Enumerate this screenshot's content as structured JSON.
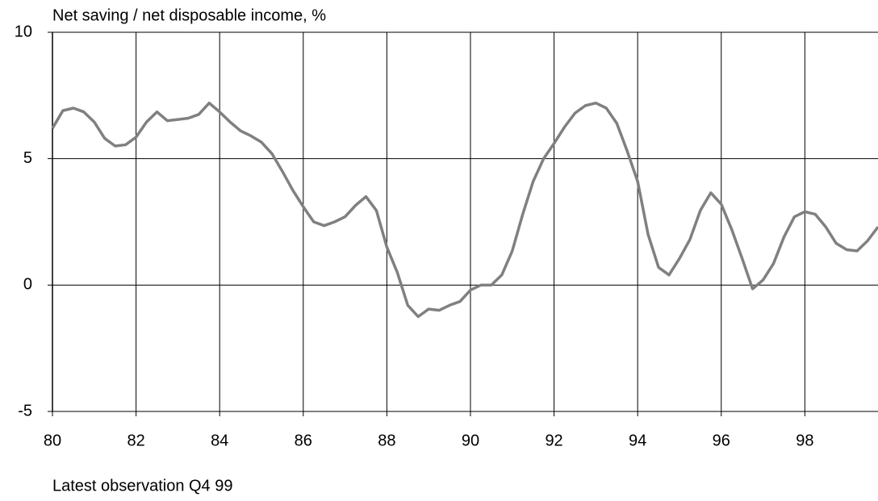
{
  "chart_data": {
    "type": "line",
    "title": "Net saving / net disposable income, %",
    "note": "Latest observation Q4 99",
    "x": [
      80,
      80.25,
      80.5,
      80.75,
      81,
      81.25,
      81.5,
      81.75,
      82,
      82.25,
      82.5,
      82.75,
      83,
      83.25,
      83.5,
      83.75,
      84,
      84.25,
      84.5,
      84.75,
      85,
      85.25,
      85.5,
      85.75,
      86,
      86.25,
      86.5,
      86.75,
      87,
      87.25,
      87.5,
      87.75,
      88,
      88.25,
      88.5,
      88.75,
      89,
      89.25,
      89.5,
      89.75,
      90,
      90.25,
      90.5,
      90.75,
      91,
      91.25,
      91.5,
      91.75,
      92,
      92.25,
      92.5,
      92.75,
      93,
      93.25,
      93.5,
      93.75,
      94,
      94.25,
      94.5,
      94.75,
      95,
      95.25,
      95.5,
      95.75,
      96,
      96.25,
      96.5,
      96.75,
      97,
      97.25,
      97.5,
      97.75,
      98,
      98.25,
      98.5,
      98.75,
      99,
      99.25,
      99.5,
      99.75
    ],
    "series": [
      {
        "color": "#808080",
        "values": [
          6.2,
          6.9,
          7.0,
          6.85,
          6.45,
          5.8,
          5.5,
          5.55,
          5.85,
          6.45,
          6.85,
          6.5,
          6.55,
          6.6,
          6.75,
          7.2,
          6.85,
          6.45,
          6.1,
          5.9,
          5.65,
          5.2,
          4.5,
          3.75,
          3.1,
          2.5,
          2.35,
          2.5,
          2.7,
          3.15,
          3.5,
          2.95,
          1.5,
          0.5,
          -0.8,
          -1.25,
          -0.95,
          -1.0,
          -0.8,
          -0.65,
          -0.2,
          0,
          0,
          0.4,
          1.35,
          2.8,
          4.1,
          5.0,
          5.6,
          6.25,
          6.8,
          7.1,
          7.2,
          7.0,
          6.4,
          5.3,
          4.1,
          2.0,
          0.7,
          0.4,
          1.05,
          1.8,
          2.95,
          3.65,
          3.2,
          2.2,
          1.05,
          -0.15,
          0.2,
          0.85,
          1.9,
          2.7,
          2.9,
          2.8,
          2.3,
          1.65,
          1.4,
          1.35,
          1.75,
          2.3
        ]
      }
    ],
    "xlim": [
      80,
      99.75
    ],
    "xticks": [
      80,
      82,
      84,
      86,
      88,
      90,
      92,
      94,
      96,
      98
    ],
    "ylim": [
      -5,
      10
    ],
    "yticks": [
      -5,
      0,
      5,
      10
    ],
    "grid": true
  }
}
